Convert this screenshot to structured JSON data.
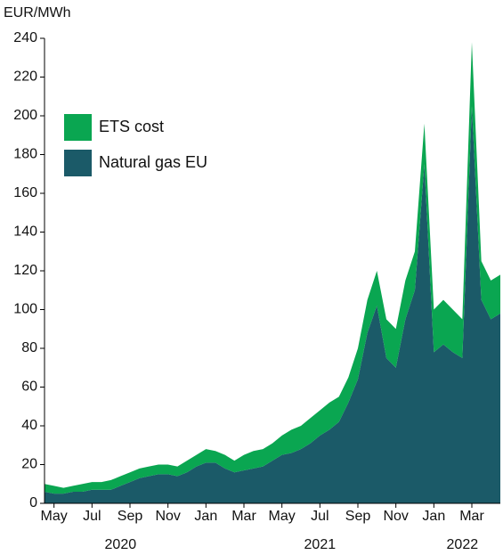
{
  "chart_data": {
    "type": "stacked_area",
    "y_label": "EUR/MWh",
    "categories": [
      null,
      "May",
      null,
      null,
      null,
      "Jul",
      null,
      null,
      null,
      "Sep",
      null,
      null,
      null,
      "Nov",
      null,
      null,
      null,
      "Jan",
      null,
      null,
      null,
      "Mar",
      null,
      null,
      null,
      "May",
      null,
      null,
      null,
      "Jul",
      null,
      null,
      null,
      "Sep",
      null,
      null,
      null,
      "Nov",
      null,
      null,
      null,
      "Jan",
      null,
      null,
      null,
      "Mar",
      null,
      null,
      null
    ],
    "year_labels": [
      "2020",
      "2021",
      "2022"
    ],
    "series": [
      {
        "name": "ETS cost",
        "color": "#0aa651",
        "values": [
          4,
          4,
          3,
          3,
          4,
          4,
          4,
          5,
          5,
          5,
          5,
          5,
          5,
          5,
          5,
          6,
          6,
          7,
          6,
          7,
          6,
          8,
          9,
          9,
          9,
          10,
          12,
          12,
          13,
          13,
          14,
          13,
          13,
          16,
          17,
          18,
          20,
          20,
          20,
          20,
          21,
          22,
          23,
          22,
          20,
          33,
          20,
          20,
          20
        ]
      },
      {
        "name": "Natural gas EU",
        "color": "#1b5a68",
        "values": [
          6,
          5,
          5,
          6,
          6,
          7,
          7,
          7,
          9,
          11,
          13,
          14,
          15,
          15,
          14,
          16,
          19,
          21,
          21,
          18,
          16,
          17,
          18,
          19,
          22,
          25,
          26,
          28,
          31,
          35,
          38,
          42,
          52,
          64,
          88,
          102,
          75,
          70,
          95,
          110,
          175,
          78,
          82,
          78,
          75,
          205,
          105,
          95,
          98
        ]
      }
    ],
    "ylim": [
      0,
      240
    ],
    "yticks": [
      0,
      20,
      40,
      60,
      80,
      100,
      120,
      140,
      160,
      180,
      200,
      220,
      240
    ]
  }
}
